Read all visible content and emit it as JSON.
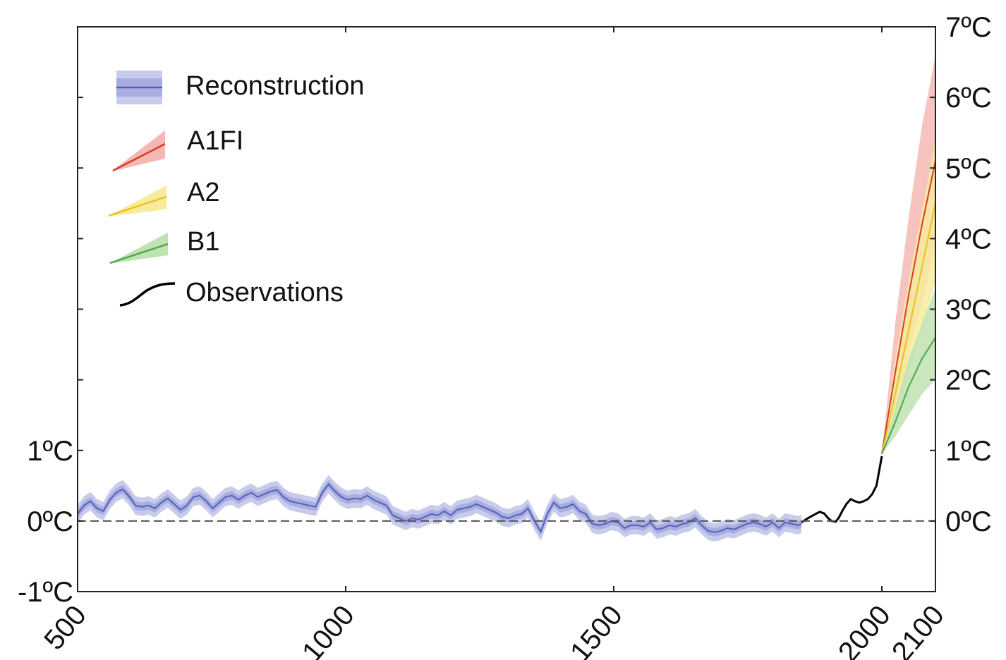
{
  "chart_data": {
    "type": "line",
    "xlim": [
      500,
      2100
    ],
    "ylim": [
      -1,
      7
    ],
    "x_ticks": [
      {
        "value": 500,
        "label": "500"
      },
      {
        "value": 1000,
        "label": "1000"
      },
      {
        "value": 1500,
        "label": "1500"
      },
      {
        "value": 2000,
        "label": "2000"
      },
      {
        "value": 2100,
        "label": "2100"
      }
    ],
    "y_ticks_left": [
      {
        "value": 1,
        "label": "1ºC"
      },
      {
        "value": 0,
        "label": "0ºC"
      },
      {
        "value": -1,
        "label": "-1ºC"
      }
    ],
    "y_ticks_right": [
      {
        "value": 7,
        "label": "7ºC"
      },
      {
        "value": 6,
        "label": "6ºC"
      },
      {
        "value": 5,
        "label": "5ºC"
      },
      {
        "value": 4,
        "label": "4ºC"
      },
      {
        "value": 3,
        "label": "3ºC"
      },
      {
        "value": 2,
        "label": "2ºC"
      },
      {
        "value": 1,
        "label": "1ºC"
      },
      {
        "value": 0,
        "label": "0ºC"
      }
    ],
    "unlabeled_left_ticks": [
      2,
      3,
      4,
      5,
      6
    ],
    "baseline": 0,
    "legend_position": "top-left",
    "colors": {
      "reconstruction_line": "#5560b8",
      "reconstruction_band_outer": "#c8cbec",
      "reconstruction_band_inner": "#a8aee0",
      "a1fi_line": "#d93a2b",
      "a1fi_band": "#f4b8b4",
      "a2_line": "#e8c21a",
      "a2_band": "#f7ec9e",
      "b1_line": "#4aa84a",
      "b1_band": "#bfe2b2",
      "observations": "#000000",
      "baseline": "#555555"
    },
    "legend": [
      {
        "key": "reconstruction",
        "label": "Reconstruction"
      },
      {
        "key": "a1fi",
        "label": "A1FI"
      },
      {
        "key": "a2",
        "label": "A2"
      },
      {
        "key": "b1",
        "label": "B1"
      },
      {
        "key": "observations",
        "label": "Observations"
      }
    ],
    "series": [
      {
        "key": "reconstruction",
        "band_half_width": 0.13,
        "inner_band_half_width": 0.06,
        "x": [
          500,
          512,
          524,
          536,
          548,
          560,
          572,
          584,
          596,
          608,
          620,
          632,
          644,
          656,
          668,
          680,
          692,
          704,
          716,
          728,
          740,
          752,
          764,
          776,
          788,
          800,
          812,
          824,
          836,
          848,
          860,
          872,
          884,
          896,
          908,
          920,
          932,
          944,
          956,
          968,
          980,
          992,
          1004,
          1016,
          1028,
          1040,
          1052,
          1064,
          1076,
          1088,
          1100,
          1112,
          1124,
          1136,
          1148,
          1160,
          1172,
          1184,
          1196,
          1208,
          1220,
          1232,
          1244,
          1256,
          1268,
          1280,
          1292,
          1304,
          1316,
          1328,
          1340,
          1352,
          1364,
          1376,
          1388,
          1400,
          1412,
          1424,
          1436,
          1448,
          1460,
          1472,
          1484,
          1496,
          1508,
          1520,
          1532,
          1544,
          1556,
          1568,
          1580,
          1592,
          1604,
          1616,
          1628,
          1640,
          1652,
          1664,
          1676,
          1688,
          1700,
          1712,
          1724,
          1736,
          1748,
          1760,
          1772,
          1784,
          1796,
          1808,
          1820,
          1832,
          1844,
          1850
        ],
        "y": [
          0.1,
          0.22,
          0.28,
          0.18,
          0.14,
          0.3,
          0.4,
          0.45,
          0.35,
          0.22,
          0.2,
          0.22,
          0.18,
          0.26,
          0.32,
          0.24,
          0.16,
          0.22,
          0.34,
          0.36,
          0.28,
          0.18,
          0.26,
          0.34,
          0.36,
          0.3,
          0.36,
          0.4,
          0.34,
          0.38,
          0.42,
          0.44,
          0.34,
          0.28,
          0.26,
          0.24,
          0.22,
          0.2,
          0.4,
          0.52,
          0.42,
          0.34,
          0.3,
          0.32,
          0.31,
          0.36,
          0.3,
          0.26,
          0.22,
          0.08,
          0.04,
          0.0,
          0.04,
          0.02,
          0.06,
          0.1,
          0.08,
          0.14,
          0.08,
          0.16,
          0.18,
          0.2,
          0.24,
          0.2,
          0.16,
          0.12,
          0.06,
          0.04,
          0.08,
          0.1,
          0.18,
          0.0,
          -0.15,
          0.1,
          0.26,
          0.18,
          0.2,
          0.24,
          0.14,
          0.1,
          -0.04,
          -0.06,
          -0.04,
          0.0,
          -0.02,
          -0.1,
          -0.06,
          -0.06,
          -0.08,
          -0.02,
          -0.12,
          -0.1,
          -0.06,
          -0.08,
          -0.04,
          -0.02,
          0.04,
          -0.06,
          -0.14,
          -0.16,
          -0.14,
          -0.1,
          -0.12,
          -0.08,
          -0.04,
          -0.02,
          -0.04,
          -0.08,
          -0.02,
          -0.1,
          -0.02,
          -0.04,
          -0.06,
          -0.04
        ]
      },
      {
        "key": "observations",
        "x": [
          1850,
          1862,
          1874,
          1884,
          1892,
          1900,
          1906,
          1914,
          1920,
          1926,
          1934,
          1942,
          1950,
          1958,
          1966,
          1974,
          1982,
          1990,
          2000
        ],
        "y": [
          -0.02,
          0.04,
          0.09,
          0.13,
          0.11,
          0.04,
          0.0,
          -0.01,
          0.05,
          0.14,
          0.24,
          0.31,
          0.28,
          0.26,
          0.28,
          0.31,
          0.38,
          0.5,
          0.92
        ]
      },
      {
        "key": "a1fi",
        "x": [
          2000,
          2025,
          2050,
          2075,
          2100
        ],
        "y": [
          0.95,
          2.1,
          3.2,
          4.2,
          5.1
        ],
        "band_low": [
          0.95,
          1.5,
          2.4,
          3.1,
          3.9
        ],
        "band_high": [
          0.95,
          2.8,
          4.3,
          5.6,
          6.6
        ]
      },
      {
        "key": "a2",
        "x": [
          2000,
          2025,
          2050,
          2075,
          2100
        ],
        "y": [
          0.95,
          1.8,
          2.7,
          3.6,
          4.5
        ],
        "band_low": [
          0.95,
          1.4,
          2.1,
          2.7,
          3.4
        ],
        "band_high": [
          0.95,
          2.3,
          3.4,
          4.4,
          5.4
        ]
      },
      {
        "key": "b1",
        "x": [
          2000,
          2025,
          2050,
          2075,
          2100
        ],
        "y": [
          0.95,
          1.4,
          1.9,
          2.3,
          2.6
        ],
        "band_low": [
          0.95,
          1.2,
          1.5,
          1.8,
          2.0
        ],
        "band_high": [
          0.95,
          1.6,
          2.3,
          2.8,
          3.3
        ]
      }
    ]
  }
}
